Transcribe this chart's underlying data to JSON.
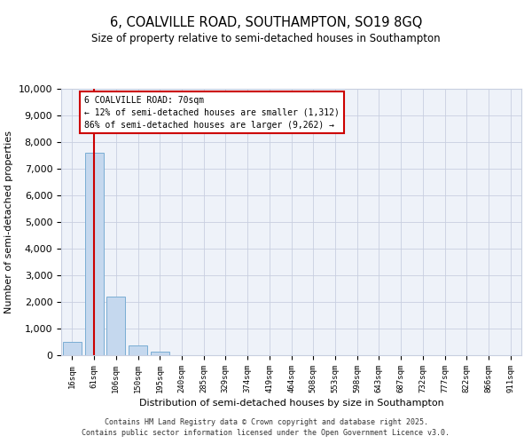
{
  "title": "6, COALVILLE ROAD, SOUTHAMPTON, SO19 8GQ",
  "subtitle": "Size of property relative to semi-detached houses in Southampton",
  "xlabel": "Distribution of semi-detached houses by size in Southampton",
  "ylabel": "Number of semi-detached properties",
  "categories": [
    "16sqm",
    "61sqm",
    "106sqm",
    "150sqm",
    "195sqm",
    "240sqm",
    "285sqm",
    "329sqm",
    "374sqm",
    "419sqm",
    "464sqm",
    "508sqm",
    "553sqm",
    "598sqm",
    "643sqm",
    "687sqm",
    "732sqm",
    "777sqm",
    "822sqm",
    "866sqm",
    "911sqm"
  ],
  "values": [
    500,
    7600,
    2200,
    370,
    130,
    0,
    0,
    0,
    0,
    0,
    0,
    0,
    0,
    0,
    0,
    0,
    0,
    0,
    0,
    0,
    0
  ],
  "bar_color": "#c5d8ee",
  "bar_edge_color": "#7aadd4",
  "highlight_line_color": "#cc0000",
  "annotation_title": "6 COALVILLE ROAD: 70sqm",
  "annotation_line1": "← 12% of semi-detached houses are smaller (1,312)",
  "annotation_line2": "86% of semi-detached houses are larger (9,262) →",
  "annotation_box_color": "#cc0000",
  "ylim": [
    0,
    10000
  ],
  "yticks": [
    0,
    1000,
    2000,
    3000,
    4000,
    5000,
    6000,
    7000,
    8000,
    9000,
    10000
  ],
  "footer_line1": "Contains HM Land Registry data © Crown copyright and database right 2025.",
  "footer_line2": "Contains public sector information licensed under the Open Government Licence v3.0.",
  "background_color": "#eef2f9",
  "grid_color": "#c8cfe0"
}
